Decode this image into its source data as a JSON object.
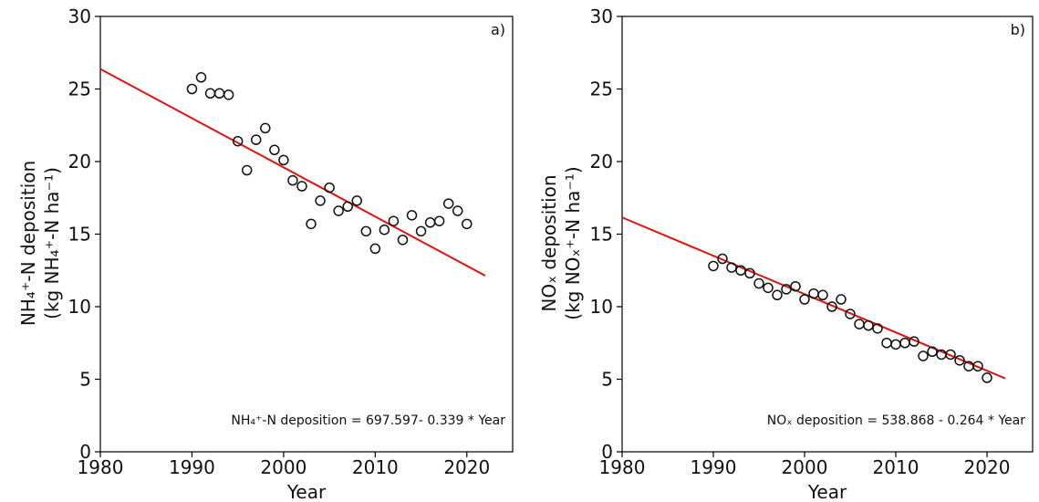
{
  "chart_data": [
    {
      "type": "scatter",
      "panel": "a)",
      "xlabel": "Year",
      "ylabel_line1": "NH₄⁺-N deposition",
      "ylabel_line2": "(kg NH₄⁺-N ha⁻¹)",
      "xlim": [
        1980,
        2025
      ],
      "ylim": [
        0,
        30
      ],
      "xticks": [
        1980,
        1990,
        2000,
        2010,
        2020
      ],
      "yticks": [
        0,
        5,
        10,
        15,
        20,
        25,
        30
      ],
      "equation": "NH₄⁺-N deposition = 697.597- 0.339 * Year",
      "fit": {
        "intercept": 697.597,
        "slope": -0.339,
        "x_range": [
          1980,
          2022
        ]
      },
      "marker_color": "#111111",
      "line_color": "#e0140f",
      "x": [
        1990,
        1991,
        1992,
        1993,
        1994,
        1995,
        1996,
        1997,
        1998,
        1999,
        2000,
        2001,
        2002,
        2003,
        2004,
        2005,
        2006,
        2007,
        2008,
        2009,
        2010,
        2011,
        2012,
        2013,
        2014,
        2015,
        2016,
        2017,
        2018,
        2019,
        2020
      ],
      "y": [
        25.0,
        25.8,
        24.7,
        24.7,
        24.6,
        21.4,
        19.4,
        21.5,
        22.3,
        20.8,
        20.1,
        18.7,
        18.3,
        15.7,
        17.3,
        18.2,
        16.6,
        16.9,
        17.3,
        15.2,
        14.0,
        15.3,
        15.9,
        14.6,
        16.3,
        15.2,
        15.8,
        15.9,
        17.1,
        16.6,
        15.7
      ]
    },
    {
      "type": "scatter",
      "panel": "b)",
      "xlabel": "Year",
      "ylabel_line1": "NOₓ deposition",
      "ylabel_line2": "(kg NOₓ⁺-N ha⁻¹)",
      "xlim": [
        1980,
        2025
      ],
      "ylim": [
        0,
        30
      ],
      "xticks": [
        1980,
        1990,
        2000,
        2010,
        2020
      ],
      "yticks": [
        0,
        5,
        10,
        15,
        20,
        25,
        30
      ],
      "equation": "NOₓ deposition = 538.868 - 0.264 * Year",
      "fit": {
        "intercept": 538.868,
        "slope": -0.264,
        "x_range": [
          1980,
          2022
        ]
      },
      "marker_color": "#111111",
      "line_color": "#e0140f",
      "x": [
        1990,
        1991,
        1992,
        1993,
        1994,
        1995,
        1996,
        1997,
        1998,
        1999,
        2000,
        2001,
        2002,
        2003,
        2004,
        2005,
        2006,
        2007,
        2008,
        2009,
        2010,
        2011,
        2012,
        2013,
        2014,
        2015,
        2016,
        2017,
        2018,
        2019,
        2020
      ],
      "y": [
        12.8,
        13.3,
        12.7,
        12.5,
        12.3,
        11.6,
        11.3,
        10.8,
        11.2,
        11.4,
        10.5,
        10.9,
        10.8,
        10.0,
        10.5,
        9.5,
        8.8,
        8.7,
        8.5,
        7.5,
        7.4,
        7.5,
        7.6,
        6.6,
        6.9,
        6.7,
        6.7,
        6.3,
        5.9,
        5.9,
        5.1
      ]
    }
  ]
}
